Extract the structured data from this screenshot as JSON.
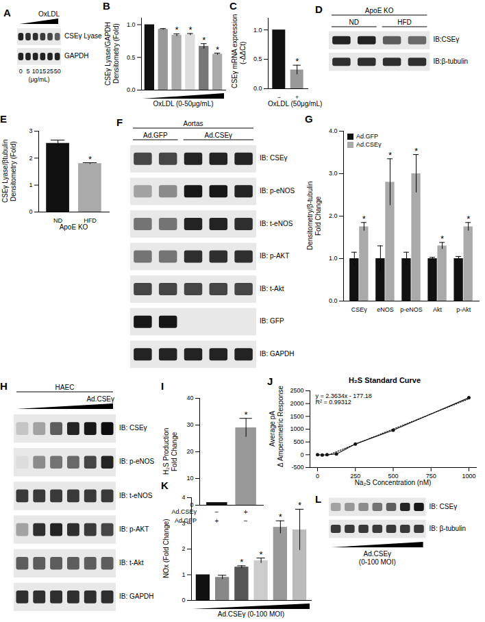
{
  "chart_data": [
    {
      "panel": "B",
      "type": "bar",
      "ylabel": [
        "CSEγ Lyase/GAPDH",
        "Densitometry (Fold)"
      ],
      "xlabel": "OxLDL (0-50μg/mL)",
      "categories": [
        null,
        null,
        null,
        null,
        null,
        null
      ],
      "values": [
        1.0,
        0.93,
        0.84,
        0.85,
        0.67,
        0.55
      ],
      "errors": [
        0,
        0.01,
        0.02,
        0.015,
        0.04,
        0.015
      ],
      "annotations": [
        null,
        null,
        "*",
        "*",
        "*",
        "*"
      ],
      "colors": [
        "#111111",
        "#999999",
        "#aaaaaa",
        "#dddddd",
        "#777777",
        "#aaaaaa"
      ],
      "ylim": [
        0,
        1.1
      ],
      "yticks": [
        {
          "value": 0,
          "label": "0.0"
        },
        {
          "value": 0.5,
          "label": "0.5"
        },
        {
          "value": 1,
          "label": "1.0"
        }
      ]
    },
    {
      "panel": "C",
      "type": "bar",
      "ylabel": [
        "CSEγ mRNA expression",
        "(-ΔΔCt)"
      ],
      "xlabel": "OxLDL (50μg/mL)",
      "categories": [
        "−",
        "+"
      ],
      "values": [
        1.0,
        0.32
      ],
      "errors": [
        0,
        0.08
      ],
      "annotations": [
        null,
        "*"
      ],
      "colors": [
        "#111111",
        "#999999"
      ],
      "ylim": [
        0,
        1.2
      ],
      "yticks": [
        {
          "value": 0,
          "label": "0.0"
        },
        {
          "value": 0.5,
          "label": "0.5"
        },
        {
          "value": 1,
          "label": "1.0"
        }
      ]
    },
    {
      "panel": "E",
      "type": "bar",
      "ylabel": [
        "CSEγ Lyase/βtubulin",
        "Densitometry (Fold)"
      ],
      "xlabel": "ApoE KO",
      "categories": [
        "ND",
        "HFD"
      ],
      "values": [
        2.55,
        1.8
      ],
      "errors": [
        0.12,
        0.03
      ],
      "annotations": [
        null,
        "*"
      ],
      "colors": [
        "#111111",
        "#aaaaaa"
      ],
      "ylim": [
        0,
        3
      ],
      "yticks": [
        0,
        1,
        2,
        3
      ]
    },
    {
      "panel": "G",
      "type": "bar",
      "ylabel": [
        "Densitometry/β-tubulin",
        "Fold Change"
      ],
      "categories": [
        "CSEγ",
        "eNOS",
        "p-eNOS",
        "Akt",
        "p-Akt"
      ],
      "legend": "top-left",
      "series": [
        {
          "name": "Ad.GFP",
          "color": "#111111",
          "values": [
            1.0,
            1.0,
            1.0,
            1.0,
            1.0
          ],
          "errors": [
            0.15,
            0.3,
            0.15,
            0.03,
            0.05
          ]
        },
        {
          "name": "Ad.CSEγ",
          "color": "#aaaaaa",
          "values": [
            1.75,
            2.8,
            3.0,
            1.3,
            1.75
          ],
          "errors": [
            0.1,
            0.55,
            0.45,
            0.08,
            0.1
          ],
          "annotations": [
            "*",
            "*",
            "*",
            "*",
            "*"
          ]
        }
      ],
      "ylim": [
        0,
        4
      ],
      "yticks": [
        {
          "value": 0,
          "label": "0.0"
        },
        {
          "value": 1,
          "label": "1.0"
        },
        {
          "value": 2,
          "label": "2.0"
        },
        {
          "value": 3,
          "label": "3.0"
        },
        {
          "value": 4,
          "label": "4.0"
        }
      ]
    },
    {
      "panel": "I",
      "type": "bar",
      "ylabel": [
        "H₂S Production",
        "Fold Change"
      ],
      "categories": [
        null,
        null
      ],
      "values": [
        1.0,
        29
      ],
      "errors": [
        0,
        3.5
      ],
      "annotations": [
        null,
        "*"
      ],
      "colors": [
        "#111111",
        "#999999"
      ],
      "condition_rows": [
        {
          "label": "Ad.CSEγ",
          "values": [
            "−",
            "+"
          ]
        },
        {
          "label": "Ad.GFP",
          "values": [
            "+",
            "−"
          ]
        }
      ],
      "ylim": [
        0,
        40
      ],
      "yticks": [
        0,
        10,
        20,
        30,
        40
      ]
    },
    {
      "panel": "J",
      "type": "line",
      "title": "H₂S Standard Curve",
      "ylabel": [
        "Average pA",
        "Δ Amperometric Response"
      ],
      "xlabel": "Na₂S Concentration (nM)",
      "x": [
        0,
        31.25,
        62.5,
        125,
        250,
        500,
        1000
      ],
      "values": [
        0,
        -10,
        0,
        30,
        420,
        960,
        2230
      ],
      "color": "#111111",
      "marker": "circle",
      "trend": {
        "x": [
          75,
          1000
        ],
        "values": [
          0,
          2186
        ],
        "line_style": "dotted"
      },
      "annotations": [
        "y = 2.3634x - 177.18",
        "R² = 0.99312"
      ],
      "xlim": [
        -50,
        1050
      ],
      "xticks": [
        0,
        250,
        500,
        750,
        1000
      ],
      "ylim": [
        -500,
        2500
      ],
      "yticks": [
        -500,
        0,
        500,
        1000,
        1500,
        2000,
        2500
      ]
    },
    {
      "panel": "K",
      "type": "bar",
      "ylabel": [
        "NOx (Fold Change)"
      ],
      "xlabel": "Ad.CSEγ (0-100 MOI)",
      "categories": [
        null,
        null,
        null,
        null,
        null,
        null
      ],
      "values": [
        1.0,
        0.9,
        1.3,
        1.55,
        2.85,
        2.75
      ],
      "errors": [
        0,
        0.08,
        0.05,
        0.1,
        0.25,
        0.8
      ],
      "annotations": [
        null,
        null,
        "*",
        "*",
        "*",
        "*"
      ],
      "colors": [
        "#111111",
        "#888888",
        "#555555",
        "#cccccc",
        "#999999",
        "#bbbbbb"
      ],
      "ylim": [
        0,
        4
      ],
      "yticks": [
        0,
        1,
        2,
        3,
        4
      ]
    }
  ],
  "blots": [
    {
      "panel": "A",
      "lanes": 6,
      "wedge_top": [
        "OxLDL"
      ],
      "lane_labels": [
        "0",
        "5",
        "10",
        "15",
        "25",
        "50"
      ],
      "lane_unit": "(μg/mL)",
      "rows": [
        {
          "label": "CSEγ Lyase",
          "intensity": [
            0.85,
            0.8,
            0.8,
            0.75,
            0.7,
            0.6
          ]
        },
        {
          "label": "GAPDH",
          "intensity": [
            0.85,
            0.85,
            0.85,
            0.85,
            0.85,
            0.85
          ]
        }
      ]
    },
    {
      "panel": "D",
      "lanes": 4,
      "header": "ApoE KO",
      "groups": [
        {
          "label": "ND",
          "lanes": 2
        },
        {
          "label": "HFD",
          "lanes": 2
        }
      ],
      "rows": [
        {
          "label": "IB:CSEγ",
          "intensity": [
            0.85,
            0.85,
            0.6,
            0.55
          ]
        },
        {
          "label": "IB:β-tubulin",
          "intensity": [
            0.8,
            0.8,
            0.8,
            0.8
          ]
        }
      ]
    },
    {
      "panel": "F",
      "lanes": 5,
      "header": "Aortas",
      "groups": [
        {
          "label": "Ad.GFP",
          "lanes": 2
        },
        {
          "label": "Ad.CSEγ",
          "lanes": 3
        }
      ],
      "rows": [
        {
          "label": "IB: CSEγ",
          "intensity": [
            0.7,
            0.7,
            0.85,
            0.85,
            0.85
          ]
        },
        {
          "label": "IB: p-eNOS",
          "intensity": [
            0.3,
            0.4,
            0.9,
            0.9,
            0.85
          ]
        },
        {
          "label": "IB: t-eNOS",
          "intensity": [
            0.5,
            0.5,
            0.85,
            0.85,
            0.8
          ]
        },
        {
          "label": "IB: p-AKT",
          "intensity": [
            0.5,
            0.5,
            0.8,
            0.8,
            0.8
          ]
        },
        {
          "label": "IB: t-Akt",
          "intensity": [
            0.7,
            0.7,
            0.7,
            0.7,
            0.7
          ]
        },
        {
          "label": "IB: GFP",
          "intensity": [
            0.9,
            0.9,
            0,
            0,
            0
          ]
        },
        {
          "label": "IB: GAPDH",
          "intensity": [
            0.85,
            0.85,
            0.85,
            0.85,
            0.85
          ]
        }
      ]
    },
    {
      "panel": "H",
      "lanes": 6,
      "header": "HAEC",
      "wedge_top": [
        "Ad.CSEγ"
      ],
      "rows": [
        {
          "label": "IB: CSEγ",
          "intensity": [
            0.15,
            0.3,
            0.6,
            0.85,
            0.9,
            0.95
          ]
        },
        {
          "label": "IB: p-eNOS",
          "intensity": [
            0.05,
            0.4,
            0.5,
            0.55,
            0.7,
            0.85
          ]
        },
        {
          "label": "IB: t-eNOS",
          "intensity": [
            0.75,
            0.75,
            0.75,
            0.75,
            0.75,
            0.75
          ]
        },
        {
          "label": "IB: p-AKT",
          "intensity": [
            0.3,
            0.8,
            0.85,
            0.8,
            0.75,
            0.7
          ]
        },
        {
          "label": "IB: t-Akt",
          "intensity": [
            0.6,
            0.6,
            0.6,
            0.6,
            0.6,
            0.6
          ]
        },
        {
          "label": "IB: GAPDH",
          "intensity": [
            0.8,
            0.8,
            0.8,
            0.8,
            0.8,
            0.8
          ]
        }
      ]
    },
    {
      "panel": "L",
      "lanes": 7,
      "wedge_bottom": [
        "Ad.CSEγ",
        "(0-100 MOI)"
      ],
      "rows": [
        {
          "label": "IB: CSEγ",
          "intensity": [
            0.3,
            0.35,
            0.4,
            0.5,
            0.6,
            0.85,
            0.9
          ]
        },
        {
          "label": "IB: β-tubulin",
          "intensity": [
            0.75,
            0.75,
            0.75,
            0.75,
            0.75,
            0.75,
            0.75
          ]
        }
      ]
    }
  ]
}
